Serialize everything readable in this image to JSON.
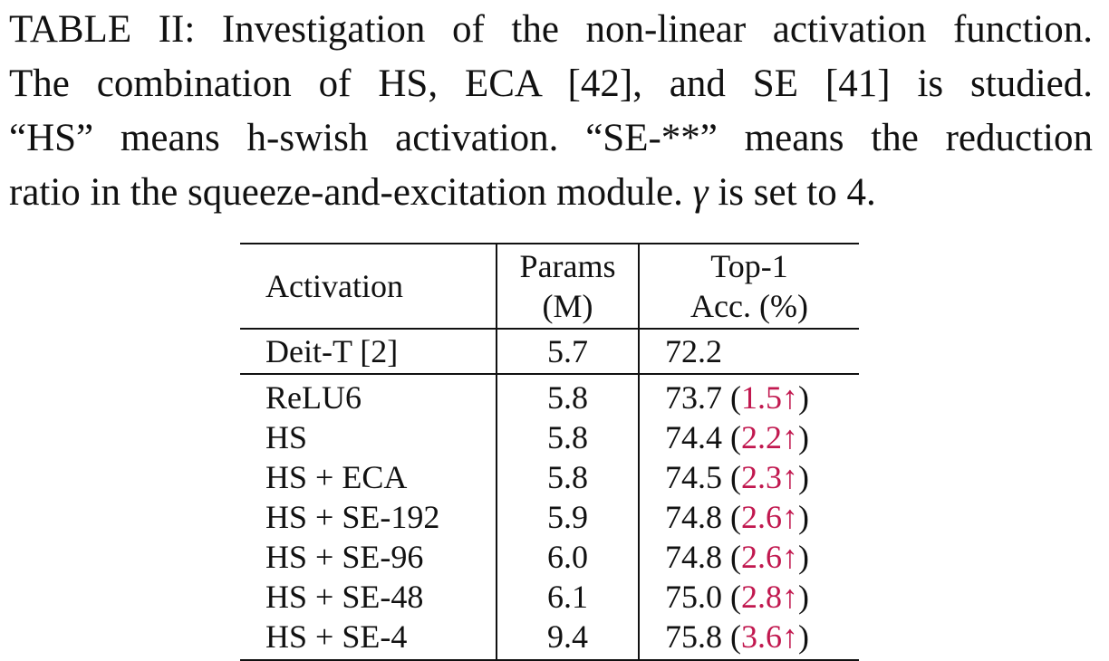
{
  "caption": {
    "lines": [
      "TABLE II: Investigation of the non-linear activation function.",
      "The combination of HS, ECA [42], and SE [41] is studied.",
      "“HS” means h-swish activation. “SE-**” means the reduction",
      "ratio in the squeeze-and-excitation module."
    ],
    "gamma_symbol": "γ",
    "gamma_tail": "is set to 4."
  },
  "table": {
    "headers": {
      "activation": "Activation",
      "params_line1": "Params",
      "params_line2": "(M)",
      "acc_line1": "Top-1",
      "acc_line2": "Acc. (%)"
    },
    "baseline": {
      "activation": "Deit-T [2]",
      "params": "5.7",
      "acc": "72.2"
    },
    "rows": [
      {
        "activation": "ReLU6",
        "params": "5.8",
        "acc": "73.7",
        "gain": "1.5↑"
      },
      {
        "activation": "HS",
        "params": "5.8",
        "acc": "74.4",
        "gain": "2.2↑"
      },
      {
        "activation": "HS + ECA",
        "params": "5.8",
        "acc": "74.5",
        "gain": "2.3↑"
      },
      {
        "activation": "HS + SE-192",
        "params": "5.9",
        "acc": "74.8",
        "gain": "2.6↑"
      },
      {
        "activation": "HS + SE-96",
        "params": "6.0",
        "acc": "74.8",
        "gain": "2.6↑"
      },
      {
        "activation": "HS + SE-48",
        "params": "6.1",
        "acc": "75.0",
        "gain": "2.8↑"
      },
      {
        "activation": "HS + SE-4",
        "params": "9.4",
        "acc": "75.8",
        "gain": "3.6↑"
      }
    ],
    "gain_color": "#c1184f"
  }
}
